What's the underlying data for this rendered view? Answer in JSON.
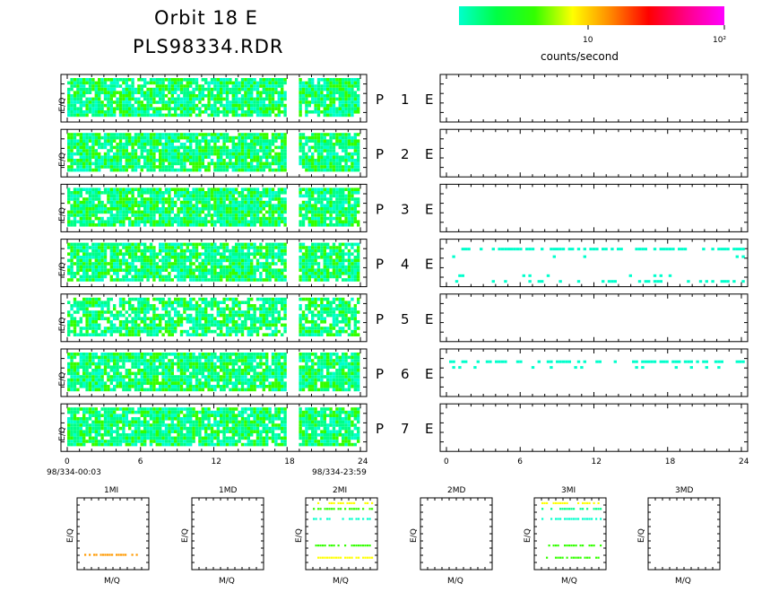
{
  "header": {
    "title_line1": "Orbit 18 E",
    "title_line2": "PLS98334.RDR"
  },
  "colorbar": {
    "colors": [
      "#00ffcc",
      "#00ff44",
      "#33ff00",
      "#ffff00",
      "#ff8800",
      "#ff0000",
      "#ff0088",
      "#ff00ff"
    ],
    "tick_labels": [
      "10",
      "10²"
    ],
    "label": "counts/second"
  },
  "chart_data": [
    {
      "type": "heatmap",
      "id": "left-panels",
      "panels": [
        "P 1 E",
        "P 2 E",
        "P 3 E",
        "P 4 E",
        "P 5 E",
        "P 6 E",
        "P 7 E"
      ],
      "ylabel": "E/Q",
      "xlim": [
        0,
        24
      ],
      "xticks": [
        "0",
        "6",
        "12",
        "18",
        "24"
      ],
      "data_gap_hours": [
        18,
        19
      ],
      "start_label": "98/334-00:03",
      "end_label": "98/334-23:59",
      "dominant_colors": [
        "#00ff88",
        "#33ff00",
        "#00ffcc"
      ]
    },
    {
      "type": "heatmap",
      "id": "right-panels",
      "xlim": [
        0,
        24
      ],
      "xticks": [
        "0",
        "6",
        "12",
        "18",
        "24"
      ],
      "active_panels": [
        "P 4 E",
        "P 6 E"
      ],
      "color": "#00ffcc"
    },
    {
      "type": "scatter",
      "id": "mq-panels",
      "panels": [
        "1MI",
        "1MD",
        "2MI",
        "2MD",
        "3MI",
        "3MD"
      ],
      "xlabel": "M/Q",
      "ylabel": "E/Q",
      "lines": {
        "1MI": [
          {
            "y": 0.22,
            "color": "#ff9900"
          }
        ],
        "2MI": [
          {
            "y": 0.94,
            "color": "#ffff00"
          },
          {
            "y": 0.86,
            "color": "#33ff00"
          },
          {
            "y": 0.72,
            "color": "#00ffcc"
          },
          {
            "y": 0.35,
            "color": "#33ff00"
          },
          {
            "y": 0.18,
            "color": "#ffff00"
          }
        ],
        "3MI": [
          {
            "y": 0.94,
            "color": "#ffff00"
          },
          {
            "y": 0.86,
            "color": "#00ff88"
          },
          {
            "y": 0.72,
            "color": "#00ffcc"
          },
          {
            "y": 0.35,
            "color": "#33ff00"
          },
          {
            "y": 0.18,
            "color": "#33ff00"
          }
        ]
      }
    }
  ]
}
